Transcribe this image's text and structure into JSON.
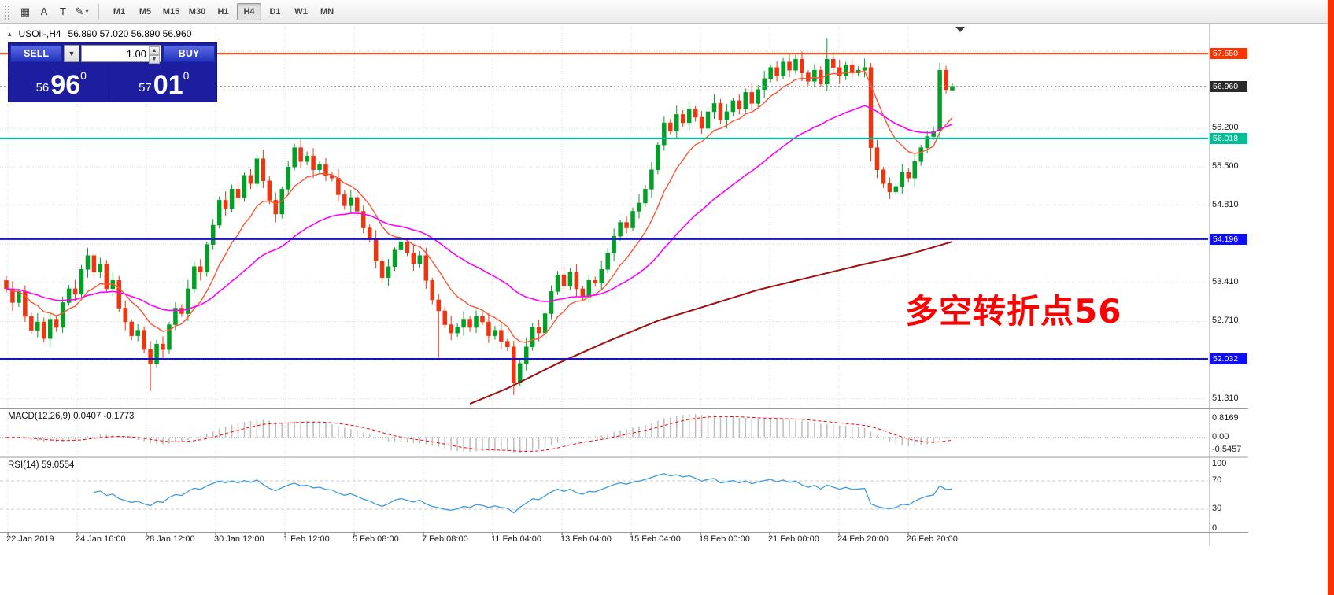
{
  "toolbar": {
    "tools": [
      {
        "name": "tick-chart-tool",
        "glyph": "▦",
        "dropdown": false
      },
      {
        "name": "text-label-tool",
        "glyph": "A",
        "dropdown": false
      },
      {
        "name": "textbox-tool",
        "glyph": "T",
        "dropdown": false
      },
      {
        "name": "pencil-draw-tool",
        "glyph": "✎",
        "dropdown": true
      }
    ],
    "timeframes": [
      "M1",
      "M5",
      "M15",
      "M30",
      "H1",
      "H4",
      "D1",
      "W1",
      "MN"
    ],
    "active_timeframe": "H4"
  },
  "chart": {
    "symbol_period": "USOil-,H4",
    "ohlc_text": "56.890 57.020 56.890 56.960",
    "annotation": "多空转折点56",
    "axis": {
      "price_top": 58.05,
      "price_bottom": 51.15
    },
    "grid_prices": [
      57.6,
      56.9,
      56.2,
      55.5,
      54.81,
      54.11,
      53.41,
      52.71,
      52.01,
      51.31
    ],
    "grid_labels": [
      {
        "price": 56.2,
        "label": "56.200"
      },
      {
        "price": 55.5,
        "label": "55.500"
      },
      {
        "price": 54.81,
        "label": "54.810"
      },
      {
        "price": 53.41,
        "label": "53.410"
      },
      {
        "price": 52.71,
        "label": "52.710"
      },
      {
        "price": 51.31,
        "label": "51.310"
      }
    ],
    "hlines": [
      {
        "price": 57.55,
        "label": "57.550",
        "color_key": "line_res"
      },
      {
        "price": 56.018,
        "label": "56.018",
        "color_key": "line_teal"
      },
      {
        "price": 54.196,
        "label": "54.196",
        "color_key": "line_blue"
      },
      {
        "price": 52.032,
        "label": "52.032",
        "color_key": "line_blue"
      }
    ],
    "bid": {
      "price": 56.96,
      "label": "56.960",
      "color_key": "bid"
    },
    "ma_periods": {
      "fast": 10,
      "mid": 34
    },
    "ma_slow_points": [
      [
        74,
        51.22
      ],
      [
        80,
        51.5
      ],
      [
        88,
        51.95
      ],
      [
        96,
        52.35
      ],
      [
        104,
        52.72
      ],
      [
        112,
        53.0
      ],
      [
        120,
        53.28
      ],
      [
        128,
        53.5
      ],
      [
        136,
        53.72
      ],
      [
        144,
        53.92
      ],
      [
        151,
        54.15
      ]
    ],
    "dates": [
      "22 Jan 2019",
      "24 Jan 16:00",
      "28 Jan 12:00",
      "30 Jan 12:00",
      "1 Feb 12:00",
      "5 Feb 08:00",
      "7 Feb 08:00",
      "11 Feb 04:00",
      "13 Feb 04:00",
      "15 Feb 04:00",
      "19 Feb 00:00",
      "21 Feb 00:00",
      "24 Feb 20:00",
      "26 Feb 20:00"
    ],
    "candles": [
      [
        53.45,
        53.53,
        53.23,
        53.3
      ],
      [
        53.3,
        53.44,
        52.9,
        53.05
      ],
      [
        53.05,
        53.3,
        52.97,
        53.25
      ],
      [
        53.25,
        53.36,
        52.7,
        52.8
      ],
      [
        52.8,
        52.87,
        52.49,
        52.55
      ],
      [
        52.55,
        52.86,
        52.42,
        52.7
      ],
      [
        52.7,
        52.78,
        52.33,
        52.4
      ],
      [
        52.4,
        52.89,
        52.25,
        52.75
      ],
      [
        52.75,
        52.8,
        52.52,
        52.6
      ],
      [
        52.6,
        53.16,
        52.5,
        53.05
      ],
      [
        53.05,
        53.37,
        52.99,
        53.3
      ],
      [
        53.3,
        53.46,
        53.07,
        53.2
      ],
      [
        53.2,
        53.73,
        53.13,
        53.65
      ],
      [
        53.65,
        54.04,
        53.5,
        53.9
      ],
      [
        53.9,
        53.95,
        53.52,
        53.6
      ],
      [
        53.6,
        53.86,
        53.5,
        53.75
      ],
      [
        53.75,
        53.82,
        53.24,
        53.3
      ],
      [
        53.3,
        53.61,
        53.17,
        53.45
      ],
      [
        53.45,
        53.53,
        52.88,
        52.95
      ],
      [
        52.95,
        53.09,
        52.55,
        52.7
      ],
      [
        52.7,
        52.75,
        52.37,
        52.45
      ],
      [
        52.45,
        52.66,
        52.35,
        52.55
      ],
      [
        52.55,
        52.62,
        52.14,
        52.2
      ],
      [
        52.2,
        52.36,
        51.45,
        51.95
      ],
      [
        51.95,
        52.38,
        51.88,
        52.3
      ],
      [
        52.3,
        52.44,
        52.05,
        52.2
      ],
      [
        52.2,
        52.7,
        52.12,
        52.65
      ],
      [
        52.65,
        53.06,
        52.55,
        52.95
      ],
      [
        52.95,
        53.02,
        52.79,
        52.85
      ],
      [
        52.85,
        53.46,
        52.72,
        53.3
      ],
      [
        53.3,
        53.78,
        53.23,
        53.7
      ],
      [
        53.7,
        53.84,
        53.45,
        53.6
      ],
      [
        53.6,
        54.15,
        53.52,
        54.1
      ],
      [
        54.1,
        54.56,
        54.0,
        54.45
      ],
      [
        54.45,
        54.97,
        54.39,
        54.9
      ],
      [
        54.9,
        55.06,
        54.62,
        54.75
      ],
      [
        54.75,
        55.18,
        54.68,
        55.1
      ],
      [
        55.1,
        55.24,
        54.8,
        54.95
      ],
      [
        54.95,
        55.4,
        54.87,
        55.35
      ],
      [
        55.35,
        55.46,
        55.1,
        55.2
      ],
      [
        55.2,
        55.72,
        55.14,
        55.65
      ],
      [
        55.65,
        55.81,
        55.12,
        55.25
      ],
      [
        55.25,
        55.33,
        54.83,
        54.9
      ],
      [
        54.9,
        55.04,
        54.5,
        54.65
      ],
      [
        54.65,
        55.15,
        54.57,
        55.1
      ],
      [
        55.1,
        55.61,
        55.0,
        55.5
      ],
      [
        55.5,
        55.92,
        55.44,
        55.85
      ],
      [
        55.85,
        56.01,
        55.47,
        55.6
      ],
      [
        55.6,
        55.78,
        55.53,
        55.7
      ],
      [
        55.7,
        55.84,
        55.3,
        55.45
      ],
      [
        55.45,
        55.6,
        55.37,
        55.55
      ],
      [
        55.55,
        55.66,
        55.25,
        55.35
      ],
      [
        55.35,
        55.42,
        55.24,
        55.3
      ],
      [
        55.3,
        55.46,
        54.87,
        55.0
      ],
      [
        55.0,
        55.08,
        54.73,
        54.8
      ],
      [
        54.8,
        55.09,
        54.65,
        54.95
      ],
      [
        54.95,
        55.0,
        54.62,
        54.7
      ],
      [
        54.7,
        54.81,
        54.3,
        54.4
      ],
      [
        54.4,
        54.47,
        54.14,
        54.2
      ],
      [
        54.2,
        54.36,
        53.67,
        53.8
      ],
      [
        53.8,
        53.88,
        53.43,
        53.5
      ],
      [
        53.5,
        53.84,
        53.35,
        53.7
      ],
      [
        53.7,
        54.05,
        53.62,
        54.0
      ],
      [
        54.0,
        54.26,
        53.9,
        54.15
      ],
      [
        54.15,
        54.22,
        53.89,
        53.95
      ],
      [
        53.95,
        54.11,
        53.62,
        53.75
      ],
      [
        53.75,
        53.98,
        53.68,
        53.9
      ],
      [
        53.9,
        54.04,
        53.3,
        53.45
      ],
      [
        53.45,
        53.5,
        53.02,
        53.1
      ],
      [
        53.1,
        53.21,
        52.05,
        52.9
      ],
      [
        52.9,
        52.97,
        52.59,
        52.65
      ],
      [
        52.65,
        52.81,
        52.37,
        52.5
      ],
      [
        52.5,
        52.68,
        52.43,
        52.6
      ],
      [
        52.6,
        52.89,
        52.45,
        52.75
      ],
      [
        52.75,
        52.8,
        52.52,
        52.6
      ],
      [
        52.6,
        52.91,
        52.5,
        52.8
      ],
      [
        52.8,
        52.87,
        52.64,
        52.7
      ],
      [
        52.7,
        52.86,
        52.32,
        52.45
      ],
      [
        52.45,
        52.63,
        52.38,
        52.55
      ],
      [
        52.55,
        52.69,
        52.2,
        52.35
      ],
      [
        52.35,
        52.4,
        52.17,
        52.25
      ],
      [
        52.25,
        52.36,
        51.38,
        51.6
      ],
      [
        51.6,
        52.02,
        51.54,
        51.95
      ],
      [
        51.95,
        52.41,
        51.82,
        52.25
      ],
      [
        52.25,
        52.68,
        52.18,
        52.6
      ],
      [
        52.6,
        52.74,
        52.35,
        52.5
      ],
      [
        52.5,
        52.9,
        52.42,
        52.85
      ],
      [
        52.85,
        53.36,
        52.75,
        53.25
      ],
      [
        53.25,
        53.62,
        53.19,
        53.55
      ],
      [
        53.55,
        53.71,
        53.22,
        53.35
      ],
      [
        53.35,
        53.68,
        53.28,
        53.6
      ],
      [
        53.6,
        53.74,
        53.15,
        53.3
      ],
      [
        53.3,
        53.35,
        53.07,
        53.15
      ],
      [
        53.15,
        53.56,
        53.05,
        53.45
      ],
      [
        53.45,
        53.52,
        53.34,
        53.4
      ],
      [
        53.4,
        53.81,
        53.27,
        53.65
      ],
      [
        53.65,
        54.03,
        53.58,
        53.95
      ],
      [
        53.95,
        54.39,
        53.8,
        54.25
      ],
      [
        54.25,
        54.55,
        54.17,
        54.5
      ],
      [
        54.5,
        54.61,
        54.3,
        54.4
      ],
      [
        54.4,
        54.77,
        54.34,
        54.7
      ],
      [
        54.7,
        55.01,
        54.57,
        54.85
      ],
      [
        54.85,
        55.18,
        54.78,
        55.1
      ],
      [
        55.1,
        55.59,
        54.95,
        55.45
      ],
      [
        55.45,
        55.95,
        55.37,
        55.9
      ],
      [
        55.9,
        56.41,
        55.8,
        56.3
      ],
      [
        56.3,
        56.37,
        56.09,
        56.15
      ],
      [
        56.15,
        56.61,
        56.02,
        56.45
      ],
      [
        56.45,
        56.53,
        56.23,
        56.3
      ],
      [
        56.3,
        56.69,
        56.15,
        56.55
      ],
      [
        56.55,
        56.6,
        56.32,
        56.4
      ],
      [
        56.4,
        56.51,
        56.1,
        56.2
      ],
      [
        56.2,
        56.57,
        56.14,
        56.5
      ],
      [
        56.5,
        56.81,
        56.37,
        56.65
      ],
      [
        56.65,
        56.73,
        56.28,
        56.35
      ],
      [
        56.35,
        56.64,
        56.2,
        56.5
      ],
      [
        56.5,
        56.75,
        56.42,
        56.7
      ],
      [
        56.7,
        56.81,
        56.45,
        56.55
      ],
      [
        56.55,
        56.92,
        56.49,
        56.85
      ],
      [
        56.85,
        57.01,
        56.52,
        56.65
      ],
      [
        56.65,
        56.98,
        56.58,
        56.9
      ],
      [
        56.9,
        57.24,
        56.75,
        57.1
      ],
      [
        57.1,
        57.35,
        57.02,
        57.3
      ],
      [
        57.3,
        57.41,
        57.05,
        57.15
      ],
      [
        57.15,
        57.47,
        57.09,
        57.4
      ],
      [
        57.4,
        57.56,
        57.12,
        57.25
      ],
      [
        57.25,
        57.53,
        57.18,
        57.45
      ],
      [
        57.45,
        57.59,
        57.05,
        57.2
      ],
      [
        57.2,
        57.25,
        56.97,
        57.05
      ],
      [
        57.05,
        57.36,
        56.95,
        57.25
      ],
      [
        57.25,
        57.32,
        56.94,
        57.0
      ],
      [
        57.0,
        57.83,
        56.87,
        57.45
      ],
      [
        57.45,
        57.53,
        57.23,
        57.3
      ],
      [
        57.3,
        57.44,
        57.0,
        57.15
      ],
      [
        57.15,
        57.4,
        57.07,
        57.35
      ],
      [
        57.35,
        57.46,
        57.1,
        57.2
      ],
      [
        57.2,
        57.32,
        57.14,
        57.25
      ],
      [
        57.25,
        57.46,
        57.12,
        57.3
      ],
      [
        57.3,
        57.38,
        55.6,
        55.85
      ],
      [
        55.85,
        55.99,
        55.3,
        55.45
      ],
      [
        55.45,
        55.5,
        55.12,
        55.2
      ],
      [
        55.2,
        55.31,
        54.92,
        55.05
      ],
      [
        55.05,
        55.22,
        54.99,
        55.15
      ],
      [
        55.15,
        55.56,
        55.02,
        55.4
      ],
      [
        55.4,
        55.48,
        55.23,
        55.3
      ],
      [
        55.3,
        55.74,
        55.15,
        55.6
      ],
      [
        55.6,
        55.9,
        55.52,
        55.85
      ],
      [
        55.85,
        56.16,
        55.75,
        56.05
      ],
      [
        56.05,
        56.22,
        55.99,
        56.15
      ],
      [
        56.15,
        57.38,
        56.02,
        57.25
      ],
      [
        57.25,
        57.33,
        56.83,
        56.9
      ],
      [
        56.89,
        57.02,
        56.89,
        56.96
      ]
    ]
  },
  "trade_panel": {
    "sell_label": "SELL",
    "buy_label": "BUY",
    "volume": "1.00",
    "sell_price": {
      "small": "56",
      "big": "96",
      "sup": "0"
    },
    "buy_price": {
      "small": "57",
      "big": "01",
      "sup": "0"
    }
  },
  "macd": {
    "title": "MACD(12,26,9) 0.0407 -0.1773",
    "scale": [
      "0.8169",
      "0.00",
      "-0.5457"
    ],
    "params": {
      "fast": 12,
      "slow": 26,
      "signal": 9
    }
  },
  "rsi": {
    "title": "RSI(14) 59.0554",
    "scale": [
      "100",
      "70",
      "30",
      "0"
    ],
    "levels": [
      70,
      30
    ],
    "period": 14
  },
  "colors": {
    "up": "#00a025",
    "down": "#ef3410",
    "ma_fast": "#ff5533",
    "ma_mid": "#ff00ff",
    "ma_slow": "#a01010",
    "line_res": "#ff3300",
    "line_teal": "#00bf96",
    "line_blue": "#0d0dff",
    "bid": "#2b2b2b",
    "macd_hist": "#bdbdbd",
    "macd_signal": "#ff0000",
    "rsi_line": "#3e9bdd",
    "annotation": "#ff0000",
    "grid": "#d9d9d9",
    "panel_bg": "#1d1da0",
    "button_blue_top": "#5a6ae6",
    "button_blue_bottom": "#2333bb",
    "edge_strip": "#ff3000"
  }
}
